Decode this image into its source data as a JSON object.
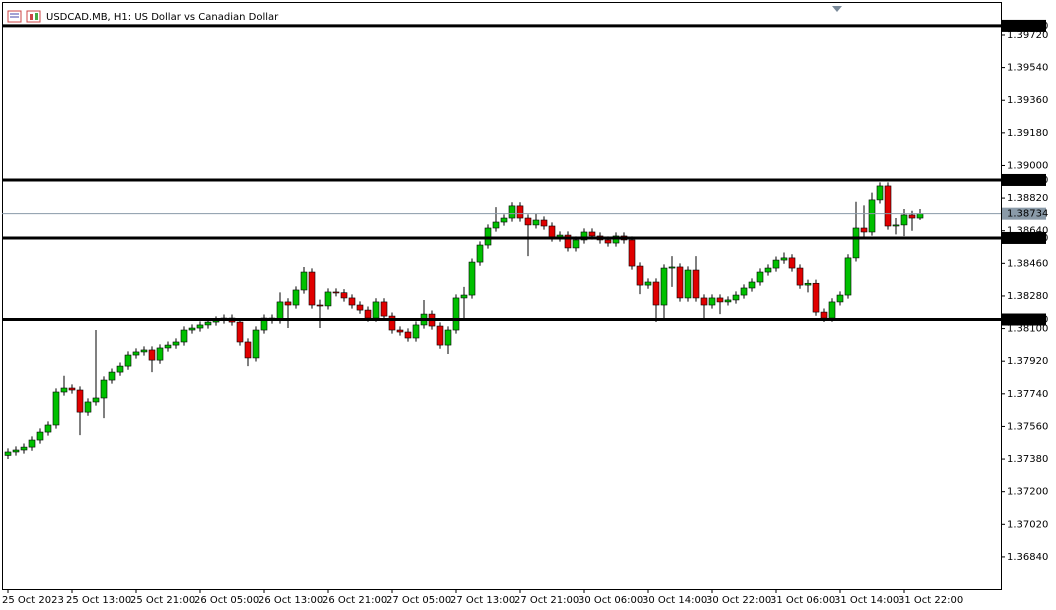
{
  "chart_data": {
    "type": "candlestick",
    "title": "USDCAD.MB, H1:  US Dollar vs Canadian Dollar",
    "categories": [
      "25 Oct 2023",
      null,
      null,
      null,
      null,
      null,
      null,
      null,
      "25 Oct 13:00",
      null,
      null,
      null,
      null,
      null,
      null,
      null,
      "25 Oct 21:00",
      null,
      null,
      null,
      null,
      null,
      null,
      null,
      "26 Oct 05:00",
      null,
      null,
      null,
      null,
      null,
      null,
      null,
      "26 Oct 13:00",
      null,
      null,
      null,
      null,
      null,
      null,
      null,
      "26 Oct 21:00",
      null,
      null,
      null,
      null,
      null,
      null,
      null,
      "27 Oct 05:00",
      null,
      null,
      null,
      null,
      null,
      null,
      null,
      "27 Oct 13:00",
      null,
      null,
      null,
      null,
      null,
      null,
      null,
      "27 Oct 21:00",
      null,
      null,
      null,
      null,
      null,
      null,
      null,
      "30 Oct 06:00",
      null,
      null,
      null,
      null,
      null,
      null,
      null,
      "30 Oct 14:00",
      null,
      null,
      null,
      null,
      null,
      null,
      null,
      "30 Oct 22:00",
      null,
      null,
      null,
      null,
      null,
      null,
      null,
      "31 Oct 06:00",
      null,
      null,
      null,
      null,
      null,
      null,
      null,
      "31 Oct 14:00",
      null,
      null,
      null,
      null,
      null,
      null,
      null,
      "31 Oct 22:00",
      null,
      null
    ],
    "open": [
      1.374,
      1.37419,
      1.3743,
      1.37446,
      1.37485,
      1.37529,
      1.37568,
      1.3775,
      1.37772,
      1.37761,
      1.37639,
      1.37695,
      1.37717,
      1.37816,
      1.3786,
      1.37893,
      1.37954,
      1.37971,
      1.37982,
      1.37926,
      1.37993,
      1.38009,
      1.38026,
      1.38092,
      1.38103,
      1.3812,
      1.38136,
      1.38147,
      1.38158,
      1.38136,
      1.38026,
      1.37938,
      1.38092,
      1.38158,
      1.38147,
      1.38247,
      1.3823,
      1.38313,
      1.38412,
      1.3823,
      1.38225,
      1.38302,
      1.38298,
      1.38269,
      1.3823,
      1.38202,
      1.38158,
      1.38247,
      1.38169,
      1.38092,
      1.38081,
      1.38048,
      1.3812,
      1.3818,
      1.38114,
      1.38009,
      1.38092,
      1.38269,
      1.38285,
      1.38467,
      1.38561,
      1.38655,
      1.38688,
      1.3871,
      1.38777,
      1.3871,
      1.38672,
      1.38699,
      1.38666,
      1.386,
      1.38616,
      1.38545,
      1.38589,
      1.38633,
      1.38611,
      1.38589,
      1.38572,
      1.38611,
      1.38589,
      1.38445,
      1.3834,
      1.38357,
      1.3823,
      1.38434,
      1.3844,
      1.38269,
      1.38423,
      1.38269,
      1.3823,
      1.38269,
      1.38247,
      1.38258,
      1.38285,
      1.38324,
      1.38357,
      1.38412,
      1.38434,
      1.38478,
      1.3849,
      1.38434,
      1.3834,
      1.3835,
      1.38191,
      1.38158,
      1.38247,
      1.38285,
      1.3849,
      1.38655,
      1.38633,
      1.3881,
      1.38887,
      1.38666,
      1.38672,
      1.38727,
      1.3871
    ],
    "high": [
      1.37439,
      1.3745,
      1.37466,
      1.37505,
      1.37549,
      1.37588,
      1.3777,
      1.3784,
      1.37792,
      1.37781,
      1.37715,
      1.38092,
      1.37836,
      1.3788,
      1.37913,
      1.37974,
      1.37991,
      1.38002,
      1.38002,
      1.38013,
      1.38029,
      1.38046,
      1.38112,
      1.38123,
      1.3814,
      1.38156,
      1.38167,
      1.38178,
      1.38178,
      1.38156,
      1.38046,
      1.38112,
      1.38178,
      1.38178,
      1.383,
      1.38267,
      1.38333,
      1.3844,
      1.38432,
      1.3826,
      1.38322,
      1.38322,
      1.38318,
      1.38289,
      1.3825,
      1.38222,
      1.38267,
      1.38267,
      1.38189,
      1.38112,
      1.38101,
      1.3814,
      1.38258,
      1.382,
      1.38134,
      1.38112,
      1.38289,
      1.3833,
      1.38487,
      1.38581,
      1.38675,
      1.3877,
      1.3873,
      1.38797,
      1.38797,
      1.3873,
      1.38735,
      1.38719,
      1.38686,
      1.38636,
      1.38636,
      1.38609,
      1.38653,
      1.38653,
      1.38631,
      1.38609,
      1.38631,
      1.38631,
      1.38609,
      1.38465,
      1.38377,
      1.38377,
      1.38454,
      1.385,
      1.3846,
      1.38443,
      1.385,
      1.38289,
      1.38289,
      1.38289,
      1.38278,
      1.38305,
      1.38344,
      1.38377,
      1.38432,
      1.38454,
      1.38498,
      1.3852,
      1.3851,
      1.38454,
      1.3837,
      1.3837,
      1.38211,
      1.38267,
      1.38305,
      1.3851,
      1.388,
      1.3878,
      1.3885,
      1.38907,
      1.38907,
      1.3871,
      1.3876,
      1.3875,
      1.3876
    ],
    "low": [
      1.3738,
      1.37399,
      1.3741,
      1.37426,
      1.37465,
      1.37509,
      1.37548,
      1.3773,
      1.37741,
      1.37512,
      1.37619,
      1.37675,
      1.37606,
      1.37796,
      1.3784,
      1.37873,
      1.37934,
      1.37951,
      1.3786,
      1.37906,
      1.37973,
      1.37989,
      1.38006,
      1.38072,
      1.38083,
      1.381,
      1.38116,
      1.38127,
      1.38116,
      1.38006,
      1.37893,
      1.37918,
      1.38072,
      1.38127,
      1.38127,
      1.38103,
      1.3821,
      1.38293,
      1.3821,
      1.38103,
      1.38205,
      1.38278,
      1.38249,
      1.3821,
      1.38182,
      1.38138,
      1.38138,
      1.38149,
      1.38072,
      1.38061,
      1.38028,
      1.38028,
      1.381,
      1.38094,
      1.37989,
      1.3796,
      1.38072,
      1.3815,
      1.38265,
      1.38447,
      1.38541,
      1.38635,
      1.38668,
      1.3869,
      1.3869,
      1.385,
      1.38652,
      1.38646,
      1.3858,
      1.3858,
      1.38525,
      1.38525,
      1.38569,
      1.38591,
      1.38569,
      1.38552,
      1.38552,
      1.38569,
      1.38425,
      1.3829,
      1.3832,
      1.38136,
      1.3815,
      1.3833,
      1.38249,
      1.38249,
      1.38249,
      1.38158,
      1.3821,
      1.3818,
      1.38227,
      1.38238,
      1.38265,
      1.38304,
      1.38337,
      1.38392,
      1.38414,
      1.38458,
      1.38414,
      1.3832,
      1.383,
      1.38171,
      1.38136,
      1.38138,
      1.38227,
      1.38265,
      1.3847,
      1.386,
      1.38613,
      1.3879,
      1.38646,
      1.3862,
      1.3861,
      1.3864,
      1.387
    ],
    "close": [
      1.37419,
      1.3743,
      1.37446,
      1.37485,
      1.37529,
      1.37568,
      1.3775,
      1.37772,
      1.37761,
      1.37639,
      1.37695,
      1.37717,
      1.37816,
      1.3786,
      1.37893,
      1.37954,
      1.37971,
      1.37982,
      1.37926,
      1.37993,
      1.38009,
      1.38026,
      1.38092,
      1.38103,
      1.3812,
      1.38136,
      1.38147,
      1.38158,
      1.38136,
      1.38026,
      1.37938,
      1.38092,
      1.38158,
      1.38147,
      1.38247,
      1.3823,
      1.38313,
      1.38412,
      1.3823,
      1.38225,
      1.38302,
      1.38298,
      1.38269,
      1.3823,
      1.38202,
      1.38158,
      1.38247,
      1.38169,
      1.38092,
      1.38081,
      1.38048,
      1.3812,
      1.3818,
      1.38114,
      1.38009,
      1.38092,
      1.38269,
      1.38285,
      1.38467,
      1.38561,
      1.38655,
      1.38688,
      1.3871,
      1.38777,
      1.3871,
      1.38672,
      1.38699,
      1.38666,
      1.386,
      1.38616,
      1.38545,
      1.38589,
      1.38633,
      1.38611,
      1.38589,
      1.38572,
      1.38611,
      1.38589,
      1.38445,
      1.3834,
      1.38357,
      1.3823,
      1.38434,
      1.3844,
      1.38269,
      1.38423,
      1.38269,
      1.3823,
      1.38269,
      1.38247,
      1.38258,
      1.38285,
      1.38324,
      1.38357,
      1.38412,
      1.38434,
      1.38478,
      1.3849,
      1.38434,
      1.3834,
      1.3835,
      1.38191,
      1.38158,
      1.38247,
      1.38285,
      1.3849,
      1.38655,
      1.38633,
      1.3881,
      1.38887,
      1.38666,
      1.38672,
      1.38727,
      1.3871,
      1.38734
    ],
    "up_color": "#00c000",
    "down_color": "#e00000",
    "ylim": [
      1.36663,
      1.39902
    ],
    "yticks": [
      {
        "value": 1.3684,
        "label": "1.36840"
      },
      {
        "value": 1.3702,
        "label": "1.37020"
      },
      {
        "value": 1.372,
        "label": "1.37200"
      },
      {
        "value": 1.3738,
        "label": "1.37380"
      },
      {
        "value": 1.3756,
        "label": "1.37560"
      },
      {
        "value": 1.3774,
        "label": "1.37740"
      },
      {
        "value": 1.3792,
        "label": "1.37920"
      },
      {
        "value": 1.381,
        "label": "1.38100"
      },
      {
        "value": 1.3828,
        "label": "1.38280"
      },
      {
        "value": 1.3846,
        "label": "1.38460"
      },
      {
        "value": 1.3864,
        "label": "1.38640"
      },
      {
        "value": 1.3882,
        "label": "1.38820"
      },
      {
        "value": 1.39,
        "label": "1.39000"
      },
      {
        "value": 1.3918,
        "label": "1.39180"
      },
      {
        "value": 1.3936,
        "label": "1.39360"
      },
      {
        "value": 1.3954,
        "label": "1.39540"
      },
      {
        "value": 1.3972,
        "label": "1.39720"
      }
    ],
    "levels": [
      {
        "value": 1.3977,
        "label": "1.39770"
      },
      {
        "value": 1.3892,
        "label": "1.38920"
      },
      {
        "value": 1.386,
        "label": "1.38600"
      },
      {
        "value": 1.3815,
        "label": "1.38150"
      }
    ],
    "level_color": "#000000",
    "current_price": {
      "value": 1.38734,
      "label": "1.38734"
    },
    "current_price_color": "#8a9aa8"
  }
}
